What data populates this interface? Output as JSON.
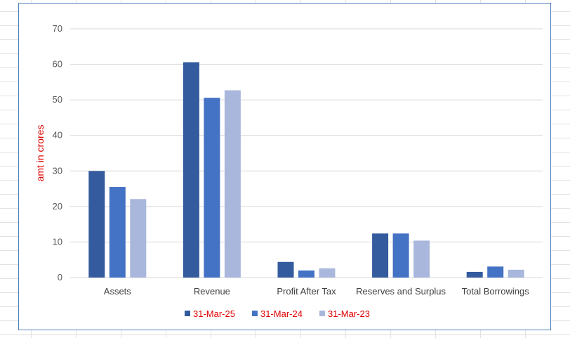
{
  "chart_data": {
    "type": "bar",
    "categories": [
      "Assets",
      "Revenue",
      "Profit After Tax",
      "Reserves and Surplus",
      "Total Borrowings"
    ],
    "series": [
      {
        "name": "31-Mar-25",
        "color": "#335b9e",
        "values": [
          30.0,
          60.6,
          4.4,
          12.4,
          1.6
        ]
      },
      {
        "name": "31-Mar-24",
        "color": "#4472c4",
        "values": [
          25.5,
          50.6,
          2.0,
          12.4,
          3.1
        ]
      },
      {
        "name": "31-Mar-23",
        "color": "#a9b7dc",
        "values": [
          22.1,
          52.7,
          2.6,
          10.4,
          2.2
        ]
      }
    ],
    "title": "",
    "xlabel": "",
    "ylabel": "amt in crores",
    "ylim": [
      0,
      70
    ],
    "yticks": [
      0,
      10,
      20,
      30,
      40,
      50,
      60,
      70
    ],
    "grid": true,
    "legend_position": "bottom"
  }
}
